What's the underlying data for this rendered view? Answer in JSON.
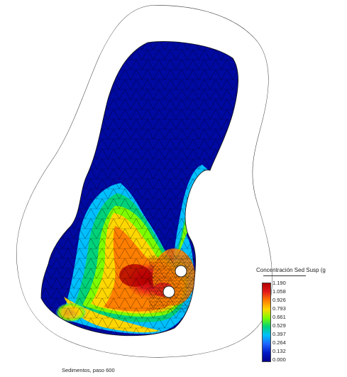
{
  "figure": {
    "caption": "Sedimentos, paso 600",
    "legend": {
      "title": "Concentración Sed Susp (g",
      "ticks": [
        "1.190",
        "1.058",
        "0.926",
        "0.793",
        "0.661",
        "0.529",
        "0.397",
        "0.264",
        "0.132",
        "0.000"
      ],
      "colors": [
        "#b30000",
        "#e31a1c",
        "#ff7f00",
        "#ffd700",
        "#7cfc00",
        "#00d27a",
        "#00bfff",
        "#1e64ff",
        "#0019c8",
        "#00008b"
      ]
    }
  }
}
